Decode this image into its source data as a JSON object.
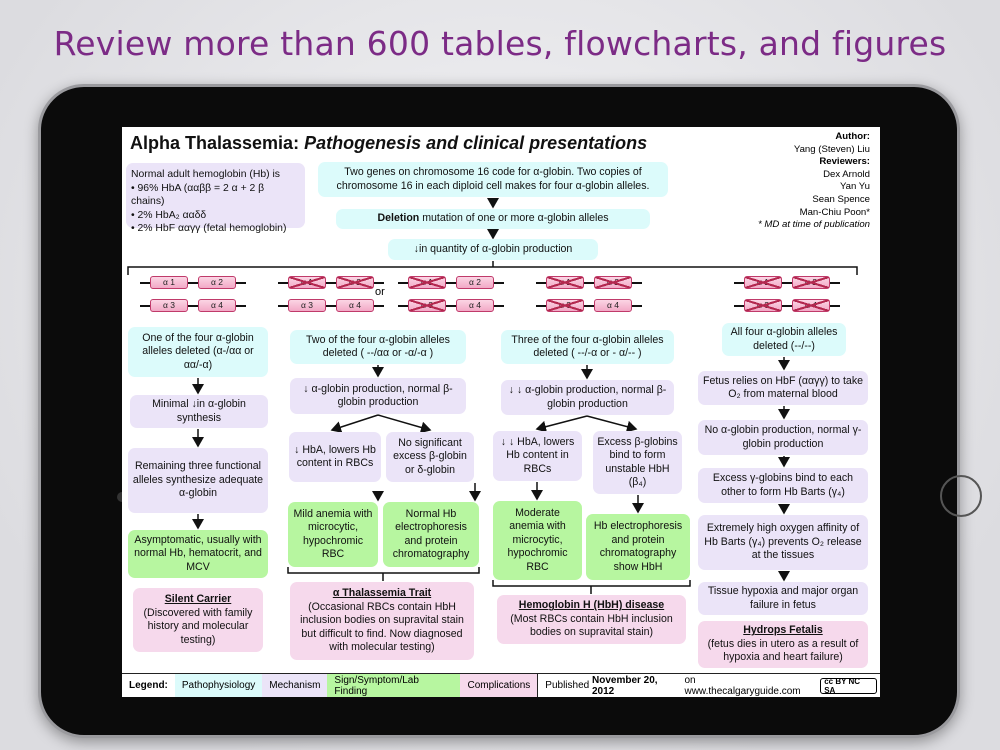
{
  "headline": "Review more than 600 tables, flowcharts, and figures",
  "colors": {
    "pathophysiology": "#dcfbfb",
    "mechanism": "#ebe4f8",
    "sign": "#b7f6a0",
    "complications": "#f6d9ec",
    "headline": "#7c2b86"
  },
  "title": {
    "main": "Alpha Thalassemia:",
    "sub": "Pathogenesis and clinical presentations"
  },
  "credits": {
    "author_label": "Author:",
    "author": "Yang (Steven) Liu",
    "reviewers_label": "Reviewers:",
    "reviewers": [
      "Dex Arnold",
      "Yan Yu",
      "Sean Spence",
      "Man-Chiu Poon*"
    ],
    "note": "* MD at time of publication"
  },
  "normal_hb": {
    "intro": "Normal adult hemoglobin (Hb) is",
    "items": [
      "• 96% HbA (ααββ = 2 α + 2 β chains)",
      "• 2% HbA₂ ααδδ",
      "• 2% HbF ααγγ (fetal hemoglobin)"
    ]
  },
  "top": {
    "genes": "Two genes on chromosome 16 code for α-globin.  Two copies of chromosome 16 in each diploid cell makes for four α-globin alleles.",
    "deletion_bold": "Deletion",
    "deletion_rest": " mutation of one or more α-globin alleles",
    "decrease": "↓in quantity of  α-globin production"
  },
  "genes": {
    "a1": "α 1",
    "a2": "α 2",
    "a3": "α 3",
    "a4": "α 4",
    "or": "or"
  },
  "col1": {
    "b1": "One of the four α-globin alleles deleted (α-/αα or αα/-α)",
    "b2": "Minimal ↓in α-globin synthesis",
    "b3": "Remaining three functional alleles synthesize adequate α-globin",
    "b4": "Asymptomatic, usually with normal Hb, hematocrit, and MCV",
    "dx_title": "Silent Carrier",
    "dx_text": "(Discovered with family history and molecular testing)"
  },
  "col2": {
    "b1": "Two of the four α-globin alleles deleted ( --/αα or -α/-α )",
    "b2": "↓  α-globin production, normal β-globin production",
    "b3": "↓ HbA, lowers Hb content in RBCs",
    "b4": "No significant excess β-globin or δ-globin",
    "b5": "Mild anemia with microcytic, hypochromic RBC",
    "b6": "Normal Hb electrophoresis and protein chromatography",
    "dx_title": "α Thalassemia Trait",
    "dx_text": "(Occasional RBCs contain HbH inclusion bodies on supravital stain but difficult to find. Now diagnosed with molecular testing)"
  },
  "col3": {
    "b1": "Three of the four α-globin alleles deleted ( --/-α or - α/-- )",
    "b2": "↓ ↓ α-globin production, normal β-globin production",
    "b3": "↓ ↓ HbA, lowers Hb content in RBCs",
    "b4": "Excess β-globins bind to form unstable HbH (β₄)",
    "b5": "Moderate anemia with microcytic, hypochromic RBC",
    "b6": "Hb electrophoresis and protein chromatography show HbH",
    "dx_title": "Hemoglobin H (HbH) disease",
    "dx_text": "(Most RBCs contain HbH inclusion bodies  on supravital stain)"
  },
  "col4": {
    "b1": "All four α-globin alleles deleted (--/--)",
    "b2": "Fetus relies on HbF (ααγγ) to take O₂ from maternal blood",
    "b3": "No α-globin production, normal γ-globin production",
    "b4": "Excess γ-globins bind to each other to form Hb Barts (γ₄)",
    "b5": "Extremely high oxygen affinity of Hb Barts (γ₄) prevents O₂ release at the tissues",
    "b6": "Tissue hypoxia and major organ failure in fetus",
    "dx_title": "Hydrops Fetalis",
    "dx_text": "(fetus dies in utero as a result of hypoxia and heart failure)"
  },
  "footer": {
    "legend_label": "Legend:",
    "legend": [
      "Pathophysiology",
      "Mechanism",
      "Sign/Symptom/Lab Finding",
      "Complications"
    ],
    "published_pre": "Published ",
    "published_date": "November 20, 2012",
    "published_post": " on www.thecalgaryguide.com",
    "license": "cc BY NC SA"
  }
}
